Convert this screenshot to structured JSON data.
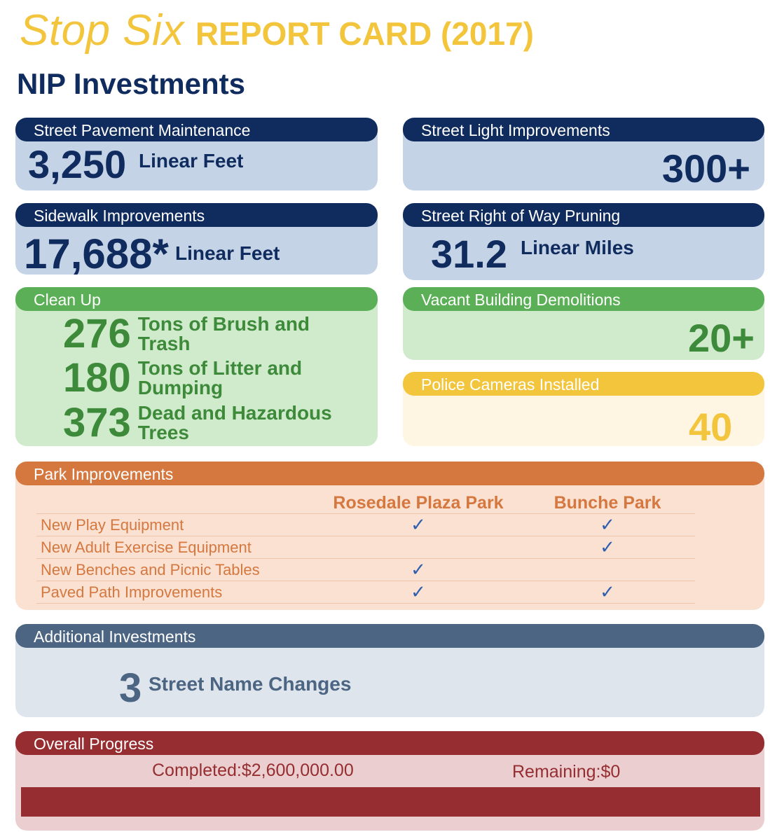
{
  "header": {
    "title_script": "Stop Six",
    "title_rest": "REPORT CARD (2017)",
    "subtitle": "NIP Investments"
  },
  "cards": {
    "pavement": {
      "title": "Street Pavement Maintenance",
      "value": "3,250",
      "unit": "Linear Feet"
    },
    "streetlight": {
      "title": "Street Light Improvements",
      "value": "300+"
    },
    "sidewalk": {
      "title": "Sidewalk Improvements",
      "value": "17,688*",
      "unit": "Linear Feet"
    },
    "pruning": {
      "title": "Street Right of Way Pruning",
      "value": "31.2",
      "unit": "Linear Miles"
    },
    "cleanup": {
      "title": "Clean Up",
      "items": [
        {
          "value": "276",
          "label": "Tons of Brush and Trash"
        },
        {
          "value": "180",
          "label": "Tons of Litter and Dumping"
        },
        {
          "value": "373",
          "label": "Dead and Hazardous Trees"
        }
      ]
    },
    "demolitions": {
      "title": "Vacant Building Demolitions",
      "value": "20+"
    },
    "cameras": {
      "title": "Police Cameras Installed",
      "value": "40"
    },
    "parks": {
      "title": "Park Improvements",
      "columns": [
        "Rosedale Plaza Park",
        "Bunche Park"
      ],
      "check_mark": "✓",
      "rows": [
        {
          "label": "New Play Equipment",
          "rosedale": true,
          "bunche": true
        },
        {
          "label": "New Adult Exercise Equipment",
          "rosedale": false,
          "bunche": true
        },
        {
          "label": "New Benches and Picnic Tables",
          "rosedale": true,
          "bunche": false
        },
        {
          "label": "Paved Path Improvements",
          "rosedale": true,
          "bunche": true
        }
      ]
    },
    "additional": {
      "title": "Additional Investments",
      "value": "3",
      "label": "Street Name Changes"
    },
    "progress": {
      "title": "Overall Progress",
      "completed": "Completed:$2,600,000.00",
      "remaining": "Remaining:$0",
      "completed_fraction": 1.0
    }
  },
  "colors": {
    "navy": "#102c5e",
    "gold": "#f2c53d",
    "green": "#5bb057",
    "orange": "#d57840",
    "slate": "#4c6582",
    "red": "#962d31"
  }
}
